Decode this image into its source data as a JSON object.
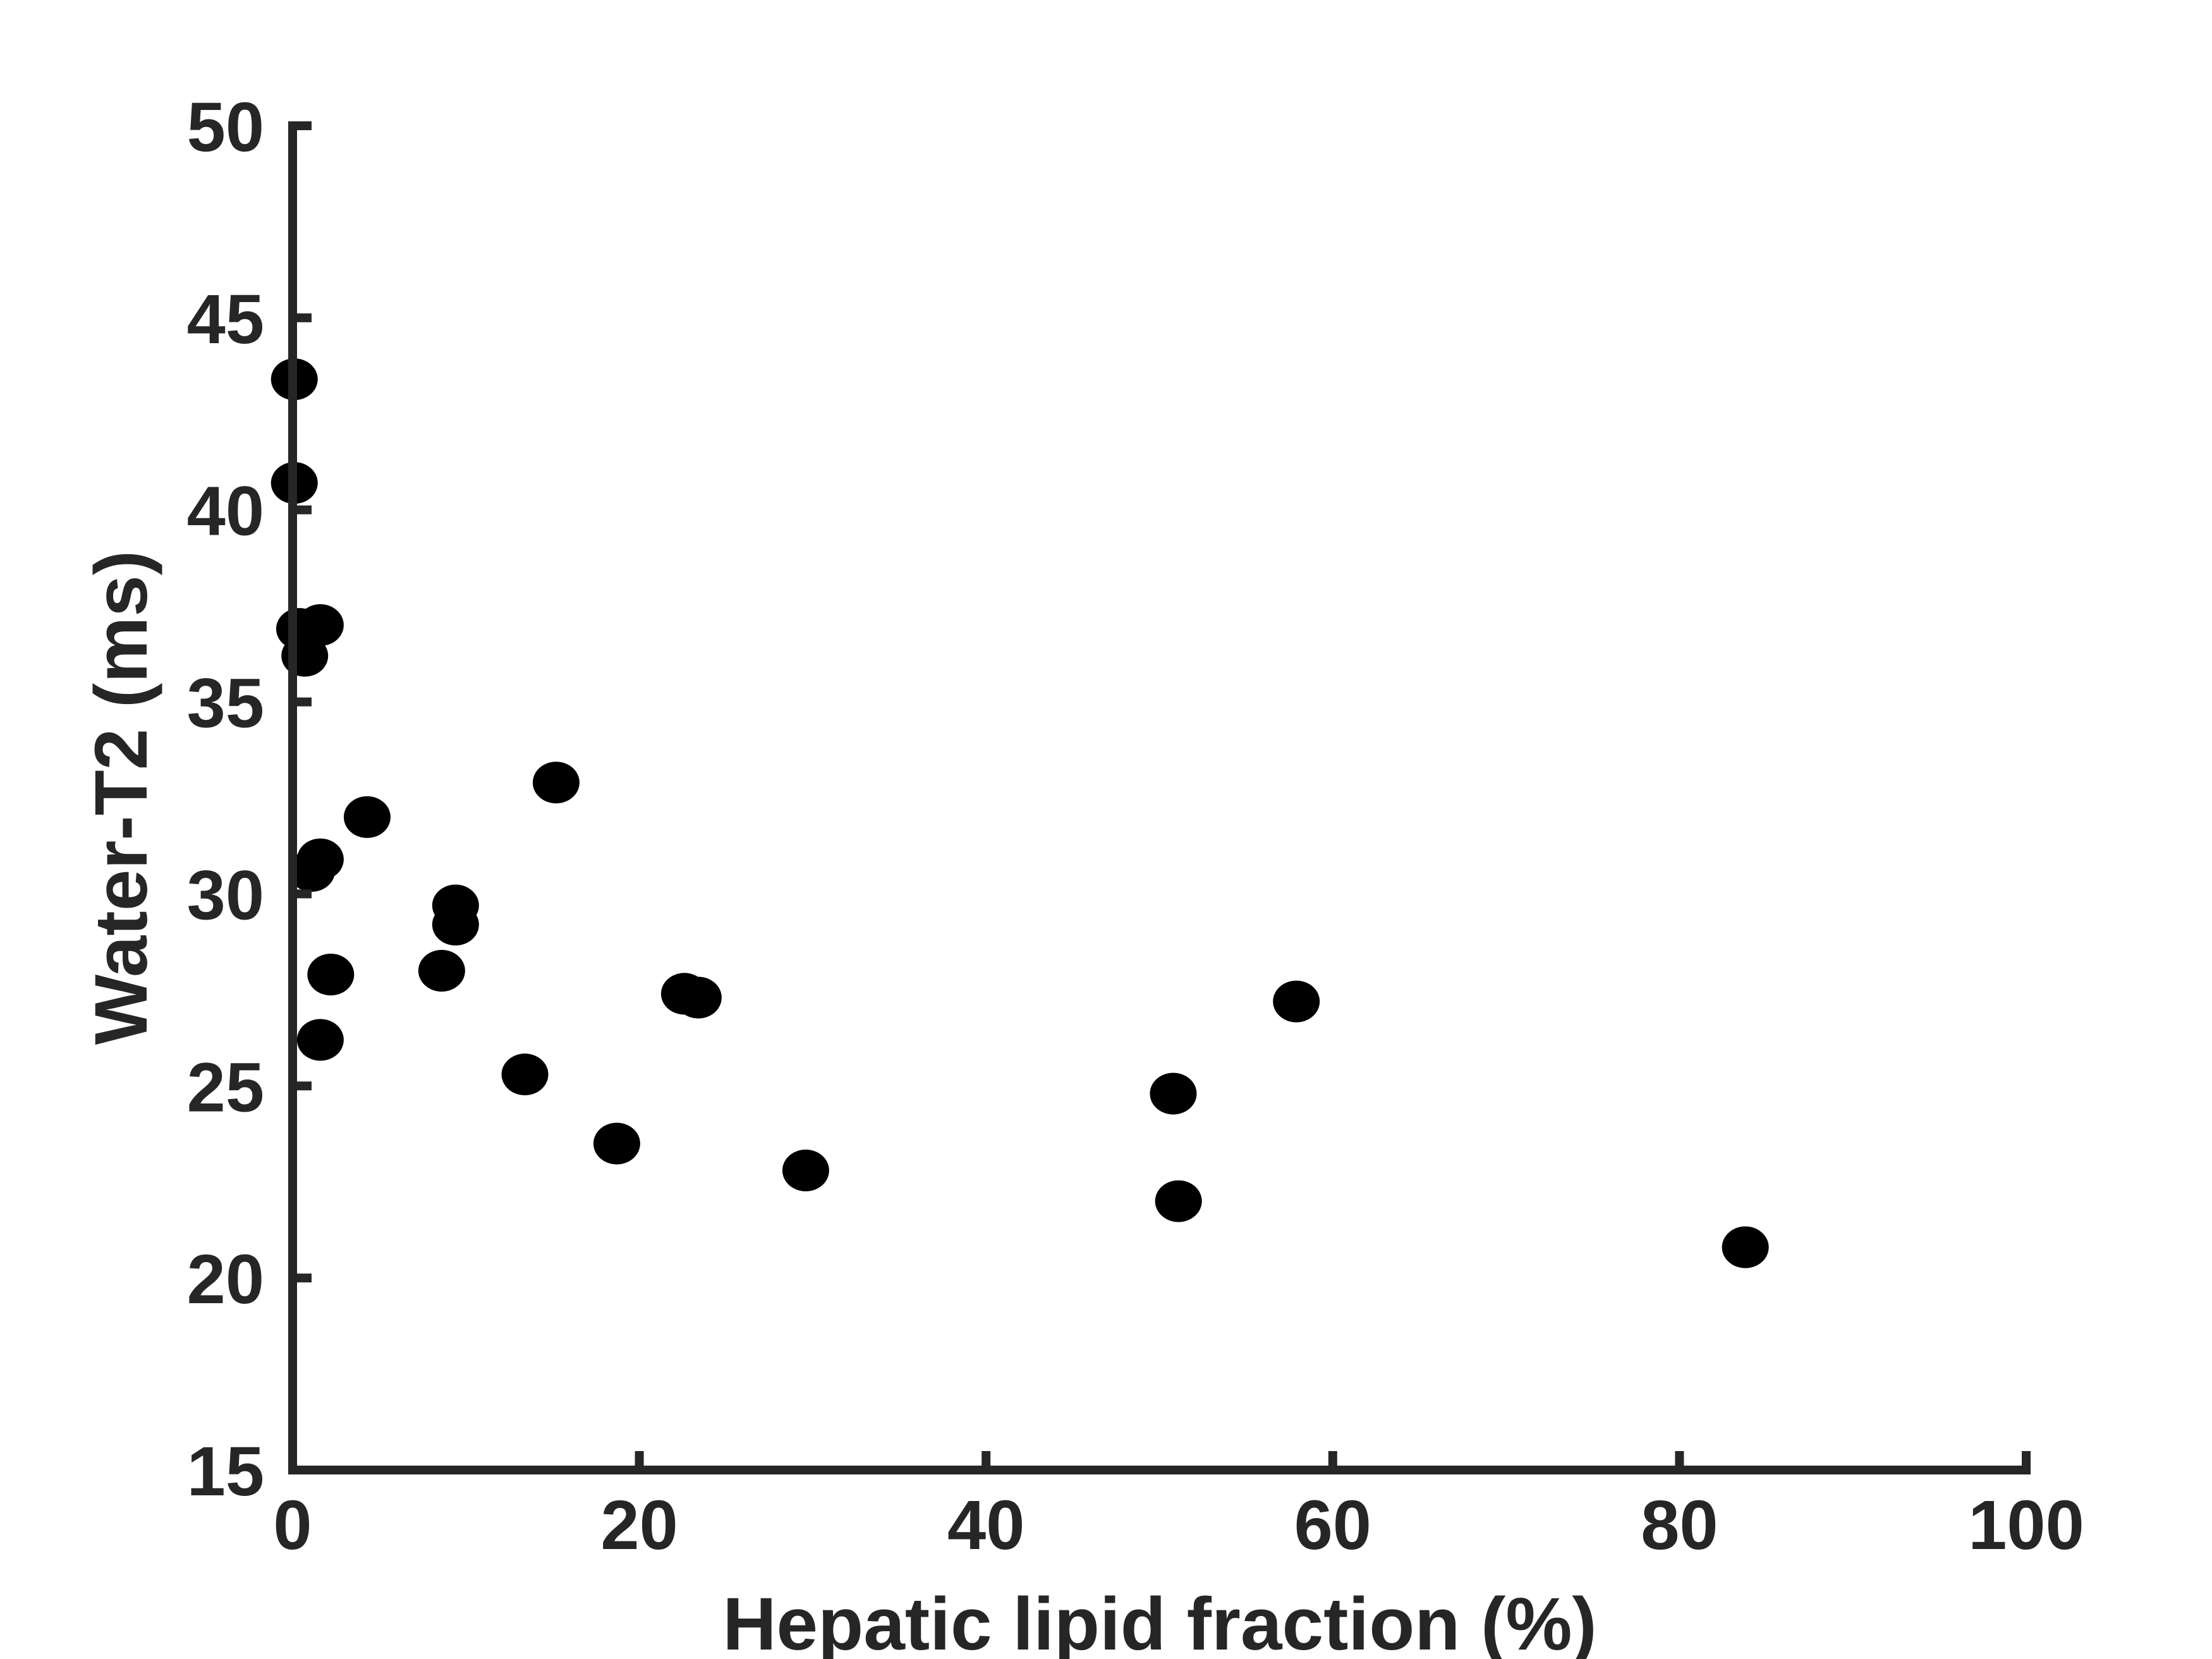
{
  "chart_data": {
    "type": "scatter",
    "title": "",
    "xlabel": "Hepatic lipid fraction (%)",
    "ylabel": "Water-T2 (ms)",
    "xlim": [
      0,
      100
    ],
    "ylim": [
      15,
      50
    ],
    "xticks": [
      0,
      20,
      40,
      60,
      80,
      100
    ],
    "yticks": [
      15,
      20,
      25,
      30,
      35,
      40,
      45,
      50
    ],
    "xtick_labels": [
      "0",
      "20",
      "40",
      "60",
      "80",
      "100"
    ],
    "ytick_labels": [
      "15",
      "20",
      "25",
      "30",
      "35",
      "40",
      "45",
      "50"
    ],
    "grid": false,
    "marker_color": "#000000",
    "axis_color": "#262626",
    "points": [
      {
        "x": 0.1,
        "y": 43.4
      },
      {
        "x": 0.1,
        "y": 40.7
      },
      {
        "x": 0.4,
        "y": 36.9
      },
      {
        "x": 1.6,
        "y": 37.0
      },
      {
        "x": 0.7,
        "y": 36.2
      },
      {
        "x": 1.1,
        "y": 30.6
      },
      {
        "x": 1.6,
        "y": 30.9
      },
      {
        "x": 4.3,
        "y": 32.0
      },
      {
        "x": 1.6,
        "y": 26.2
      },
      {
        "x": 2.2,
        "y": 27.9
      },
      {
        "x": 8.6,
        "y": 28.0
      },
      {
        "x": 9.4,
        "y": 29.7
      },
      {
        "x": 9.4,
        "y": 29.2
      },
      {
        "x": 13.4,
        "y": 25.3
      },
      {
        "x": 15.2,
        "y": 32.9
      },
      {
        "x": 18.7,
        "y": 23.5
      },
      {
        "x": 22.6,
        "y": 27.4
      },
      {
        "x": 23.4,
        "y": 27.3
      },
      {
        "x": 29.6,
        "y": 22.8
      },
      {
        "x": 50.8,
        "y": 24.8
      },
      {
        "x": 51.1,
        "y": 22.0
      },
      {
        "x": 57.9,
        "y": 27.2
      },
      {
        "x": 83.8,
        "y": 20.8
      }
    ]
  }
}
